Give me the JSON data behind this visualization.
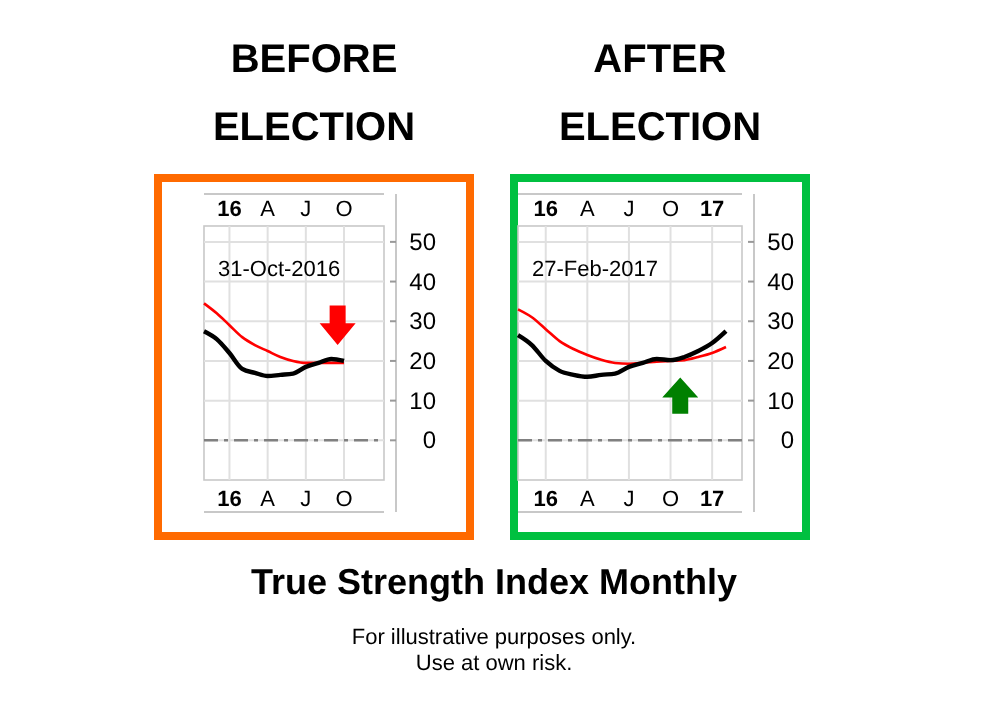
{
  "chart_data": [
    {
      "type": "line",
      "title": "BEFORE ELECTION",
      "annotations": [
        "31-Oct-2016"
      ],
      "categories": [
        null,
        null,
        "16",
        null,
        null,
        "A",
        null,
        null,
        "J",
        null,
        null,
        "O"
      ],
      "ylim": [
        -10,
        54
      ],
      "yticks": [
        0,
        10,
        20,
        30,
        40,
        50
      ],
      "grid": true,
      "series": [
        {
          "color": "#ff0000",
          "values": [
            34.5,
            32,
            29,
            26,
            24,
            22.5,
            21,
            20,
            19.5,
            19.5,
            19.5,
            19.5
          ]
        },
        {
          "color": "#000000",
          "values": [
            27.5,
            25.5,
            22,
            18,
            17,
            16.2,
            16.5,
            16.8,
            18.5,
            19.5,
            20.5,
            20
          ]
        }
      ],
      "ref_lines": [
        {
          "axis": "y",
          "value": 0,
          "color": "#808080",
          "line_style": "dashed"
        }
      ]
    },
    {
      "type": "line",
      "title": "AFTER ELECTION",
      "annotations": [
        "27-Feb-2017"
      ],
      "categories": [
        null,
        null,
        "16",
        null,
        null,
        "A",
        null,
        null,
        "J",
        null,
        null,
        "O",
        null,
        null,
        "17",
        null
      ],
      "ylim": [
        -10,
        54
      ],
      "yticks": [
        0,
        10,
        20,
        30,
        40,
        50
      ],
      "grid": true,
      "series": [
        {
          "color": "#ff0000",
          "values": [
            33,
            31,
            28,
            25,
            23,
            21.5,
            20.3,
            19.5,
            19.3,
            19.5,
            19.8,
            20,
            20.2,
            21,
            22,
            23.5
          ]
        },
        {
          "color": "#000000",
          "values": [
            26.5,
            24,
            20,
            17.5,
            16.5,
            16,
            16.5,
            16.8,
            18.5,
            19.5,
            20.5,
            20.2,
            21,
            22.5,
            24.5,
            27.5
          ]
        }
      ],
      "ref_lines": [
        {
          "axis": "y",
          "value": 0,
          "color": "#808080",
          "line_style": "dashed"
        }
      ]
    },
    {
      "type": "other",
      "title": "True Strength Index Monthly",
      "annotations": [
        "For illustrative purposes only.",
        "Use at own risk."
      ]
    }
  ]
}
